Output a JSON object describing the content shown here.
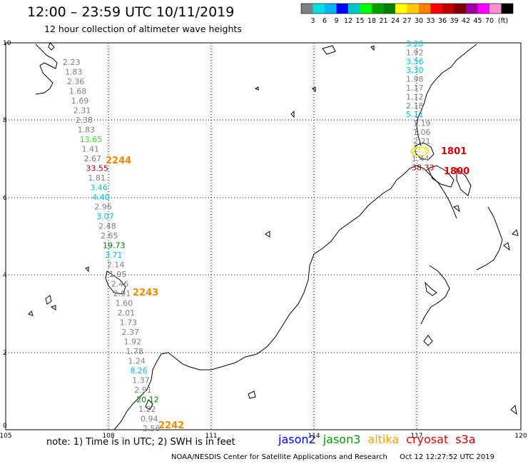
{
  "title": "12:00 – 23:59 UTC 10/11/2019",
  "subtitle": "12 hour collection of altimeter wave heights",
  "legend": {
    "labels": [
      "3",
      "6",
      "9",
      "12",
      "15",
      "18",
      "21",
      "24",
      "27",
      "30",
      "33",
      "36",
      "39",
      "42",
      "45",
      "70"
    ],
    "unit": "(ft)",
    "colors": [
      "#808080",
      "#00e0e0",
      "#00b4ff",
      "#0000ff",
      "#00c8c8",
      "#00ff00",
      "#00a000",
      "#008000",
      "#ffff00",
      "#ffc800",
      "#ff8000",
      "#ff0000",
      "#c00000",
      "#800000",
      "#a000a0",
      "#ff00ff",
      "#ff90d0",
      "#000000"
    ]
  },
  "axes": {
    "x_ticks": [
      "105",
      "108",
      "111",
      "114",
      "117",
      "120"
    ],
    "y_ticks": [
      "0",
      "2",
      "4",
      "6",
      "8",
      "10"
    ]
  },
  "track_west": [
    {
      "v": "2.23",
      "c": "#808080"
    },
    {
      "v": "1.83",
      "c": "#808080"
    },
    {
      "v": "2.36",
      "c": "#808080"
    },
    {
      "v": "1.68",
      "c": "#808080"
    },
    {
      "v": "1.69",
      "c": "#808080"
    },
    {
      "v": "2.31",
      "c": "#808080"
    },
    {
      "v": "2.38",
      "c": "#808080"
    },
    {
      "v": "1.83",
      "c": "#808080"
    },
    {
      "v": "13.65",
      "c": "#32e632"
    },
    {
      "v": "1.41",
      "c": "#808080"
    },
    {
      "v": "2.67",
      "c": "#808080"
    },
    {
      "v": "33.55",
      "c": "#b40000"
    },
    {
      "v": "1.81",
      "c": "#808080"
    },
    {
      "v": "3.46",
      "c": "#00c8e6"
    },
    {
      "v": "4.40",
      "c": "#00c8e6"
    },
    {
      "v": "2.96",
      "c": "#808080"
    },
    {
      "v": "3.07",
      "c": "#00c8e6"
    },
    {
      "v": "2.48",
      "c": "#808080"
    },
    {
      "v": "2.65",
      "c": "#808080"
    },
    {
      "v": "19.73",
      "c": "#008000"
    },
    {
      "v": "3.71",
      "c": "#00c8e6"
    },
    {
      "v": "2.14",
      "c": "#808080"
    },
    {
      "v": "1.95",
      "c": "#808080"
    },
    {
      "v": "2.46",
      "c": "#808080"
    },
    {
      "v": "2.91",
      "c": "#808080"
    },
    {
      "v": "1.60",
      "c": "#808080"
    },
    {
      "v": "2.01",
      "c": "#808080"
    },
    {
      "v": "1.73",
      "c": "#808080"
    },
    {
      "v": "2.37",
      "c": "#808080"
    },
    {
      "v": "1.92",
      "c": "#808080"
    },
    {
      "v": "1.78",
      "c": "#808080"
    },
    {
      "v": "1.24",
      "c": "#808080"
    },
    {
      "v": "8.26",
      "c": "#00c8e6"
    },
    {
      "v": "1.37",
      "c": "#808080"
    },
    {
      "v": "2.91",
      "c": "#808080"
    },
    {
      "v": "20.12",
      "c": "#008000"
    },
    {
      "v": "1.22",
      "c": "#808080"
    },
    {
      "v": "0.94",
      "c": "#808080"
    },
    {
      "v": "2.56",
      "c": "#808080"
    }
  ],
  "track_east": [
    {
      "v": "3.28",
      "c": "#00c8e6"
    },
    {
      "v": "1.92",
      "c": "#808080"
    },
    {
      "v": "3.56",
      "c": "#00c8e6"
    },
    {
      "v": "3.30",
      "c": "#00c8e6"
    },
    {
      "v": "1.98",
      "c": "#808080"
    },
    {
      "v": "1.17",
      "c": "#808080"
    },
    {
      "v": "1.12",
      "c": "#808080"
    },
    {
      "v": "2.18",
      "c": "#808080"
    },
    {
      "v": "5.11",
      "c": "#00c8e6"
    },
    {
      "v": "1.19",
      "c": "#808080"
    },
    {
      "v": "1.06",
      "c": "#808080"
    },
    {
      "v": "2.21",
      "c": "#808080"
    },
    {
      "v": "27.0",
      "c": "#e6e600"
    },
    {
      "v": "1.44",
      "c": "#808080"
    },
    {
      "v": "38.33",
      "c": "#b40000"
    }
  ],
  "time_labels": [
    {
      "t": "2244",
      "c": "#f08c00"
    },
    {
      "t": "2243",
      "c": "#f08c00"
    },
    {
      "t": "2242",
      "c": "#f08c00"
    },
    {
      "t": "1801",
      "c": "#dc0000"
    },
    {
      "t": "1800",
      "c": "#dc0000"
    }
  ],
  "footnote": "note: 1) Time is in UTC; 2) SWH is in feet",
  "satellites": [
    {
      "name": "jason2",
      "color": "#0000ff"
    },
    {
      "name": "jason3",
      "color": "#00a000"
    },
    {
      "name": "altika",
      "color": "#ffa000"
    },
    {
      "name": "cryosat",
      "color": "#ff0000"
    },
    {
      "name": "s3a",
      "color": "#c00000"
    }
  ],
  "credit": "NOAA/NESDIS Center for Satellite Applications and Research",
  "timestamp": "Oct 12 12:27:52 UTC 2019"
}
